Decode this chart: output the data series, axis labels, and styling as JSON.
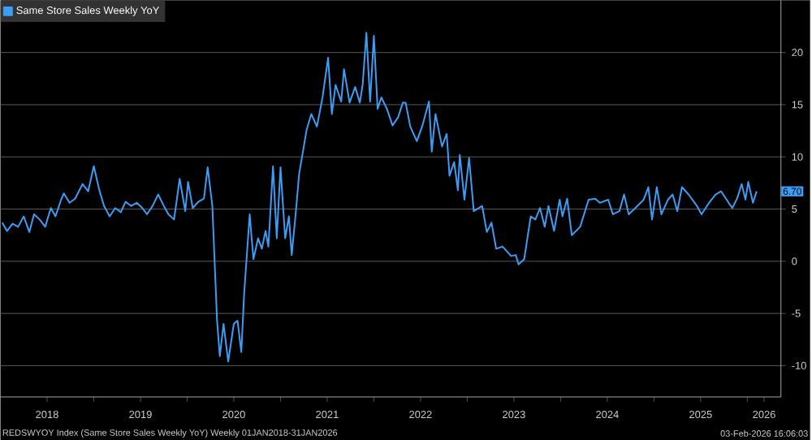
{
  "chart_data": {
    "type": "line",
    "x": [
      2018.02,
      2018.07,
      2018.13,
      2018.19,
      2018.25,
      2018.31,
      2018.36,
      2018.42,
      2018.48,
      2018.54,
      2018.59,
      2018.65,
      2018.68,
      2018.74,
      2018.8,
      2018.88,
      2018.94,
      2019.0,
      2019.06,
      2019.11,
      2019.17,
      2019.23,
      2019.29,
      2019.34,
      2019.4,
      2019.46,
      2019.52,
      2019.57,
      2019.63,
      2019.69,
      2019.75,
      2019.8,
      2019.86,
      2019.92,
      2019.98,
      2020.01,
      2020.06,
      2020.12,
      2020.18,
      2020.22,
      2020.27,
      2020.32,
      2020.35,
      2020.39,
      2020.44,
      2020.5,
      2020.54,
      2020.58,
      2020.61,
      2020.67,
      2020.71,
      2020.76,
      2020.8,
      2020.84,
      2020.87,
      2020.92,
      2020.96,
      2021.0,
      2021.05,
      2021.09,
      2021.12,
      2021.16,
      2021.2,
      2021.28,
      2021.33,
      2021.39,
      2021.45,
      2021.51,
      2021.55,
      2021.59,
      2021.65,
      2021.68,
      2021.74,
      2021.8,
      2021.85,
      2021.88,
      2021.92,
      2021.96,
      2022.0,
      2022.04,
      2022.08,
      2022.14,
      2022.2,
      2022.26,
      2022.31,
      2022.34,
      2022.39,
      2022.46,
      2022.52,
      2022.59,
      2022.62,
      2022.66,
      2022.73,
      2022.78,
      2022.81,
      2022.86,
      2022.9,
      2022.92,
      2022.97,
      2023.02,
      2023.07,
      2023.16,
      2023.21,
      2023.26,
      2023.31,
      2023.38,
      2023.47,
      2023.52,
      2023.55,
      2023.61,
      2023.68,
      2023.73,
      2023.78,
      2023.83,
      2023.87,
      2023.93,
      2023.99,
      2024.02,
      2024.07,
      2024.12,
      2024.21,
      2024.3,
      2024.37,
      2024.42,
      2024.51,
      2024.56,
      2024.63,
      2024.68,
      2024.73,
      2024.8,
      2024.89,
      2024.94,
      2024.98,
      2025.03,
      2025.08,
      2025.15,
      2025.2,
      2025.25,
      2025.3,
      2025.37,
      2025.46,
      2025.51,
      2025.59,
      2025.66,
      2025.72,
      2025.8,
      2025.84,
      2025.89,
      2025.94,
      2025.98,
      2026.01,
      2026.06,
      2026.1
    ],
    "series": [
      {
        "name": "Same Store Sales Weekly YoY",
        "color": "#3d9df5",
        "values": [
          3.7,
          2.9,
          3.6,
          3.3,
          4.3,
          2.8,
          4.5,
          4.0,
          3.3,
          5.1,
          4.3,
          5.9,
          6.5,
          5.6,
          6.0,
          7.4,
          6.7,
          9.1,
          6.8,
          5.3,
          4.3,
          5.1,
          4.7,
          5.7,
          5.3,
          5.6,
          5.1,
          4.5,
          5.3,
          6.4,
          5.3,
          4.5,
          4.0,
          7.9,
          4.8,
          7.6,
          5.1,
          5.7,
          6.0,
          9.0,
          5.3,
          -5.6,
          -9.1,
          -6.0,
          -9.6,
          -6.0,
          -5.7,
          -8.7,
          -3.2,
          4.5,
          0.2,
          2.2,
          1.2,
          2.9,
          1.4,
          9.1,
          2.2,
          9.0,
          2.2,
          4.3,
          0.6,
          4.3,
          8.4,
          12.6,
          14.1,
          12.9,
          15.7,
          19.5,
          14.1,
          16.9,
          15.3,
          18.4,
          15.2,
          16.7,
          15.2,
          16.9,
          21.9,
          15.3,
          21.6,
          14.6,
          15.7,
          14.6,
          13.0,
          13.8,
          15.2,
          15.2,
          12.9,
          11.5,
          13.0,
          15.3,
          10.5,
          14.1,
          11.0,
          12.2,
          8.2,
          9.5,
          6.8,
          10.2,
          5.9,
          9.9,
          4.8,
          5.3,
          2.8,
          3.7,
          1.2,
          1.4,
          0.5,
          0.6,
          -0.3,
          0.2,
          4.3,
          4.0,
          5.1,
          3.3,
          5.3,
          2.9,
          5.9,
          4.3,
          6.0,
          2.5,
          3.3,
          5.9,
          6.0,
          5.6,
          5.9,
          4.5,
          4.8,
          6.4,
          4.5,
          5.1,
          5.9,
          7.1,
          4.0,
          7.1,
          4.5,
          5.9,
          6.4,
          4.8,
          7.1,
          6.4,
          5.3,
          4.5,
          5.6,
          6.4,
          6.7,
          5.6,
          5.1,
          6.0,
          7.4,
          5.9,
          7.6,
          5.6,
          6.7
        ]
      }
    ],
    "xlim": [
      2018.0,
      2026.36
    ],
    "ylim": [
      -13,
      25
    ],
    "xticks": [
      {
        "value": 2018.5,
        "label": "2018"
      },
      {
        "value": 2019.5,
        "label": "2019"
      },
      {
        "value": 2020.5,
        "label": "2020"
      },
      {
        "value": 2021.5,
        "label": "2021"
      },
      {
        "value": 2022.5,
        "label": "2022"
      },
      {
        "value": 2023.5,
        "label": "2023"
      },
      {
        "value": 2024.5,
        "label": "2024"
      },
      {
        "value": 2025.5,
        "label": "2025"
      },
      {
        "value": 2026.18,
        "label": "2026"
      },
      {
        "value": 2019,
        "label": null
      },
      {
        "value": 2020,
        "label": null
      },
      {
        "value": 2021,
        "label": null
      },
      {
        "value": 2022,
        "label": null
      },
      {
        "value": 2023,
        "label": null
      },
      {
        "value": 2024,
        "label": null
      },
      {
        "value": 2025,
        "label": null
      },
      {
        "value": 2026,
        "label": null
      }
    ],
    "yticks": [
      -10,
      -5,
      0,
      5,
      10,
      15,
      20
    ],
    "grid": "y",
    "legend": "top left",
    "line_style": "solid",
    "marker": "none",
    "annotations": [
      {
        "text": "6.70",
        "y": 6.7
      },
      "REDSWYOY Index (Same Store Sales Weekly YoY) Weekly 01JAN2018-31JAN2026",
      "03-Feb-2026 16:06:03"
    ]
  }
}
